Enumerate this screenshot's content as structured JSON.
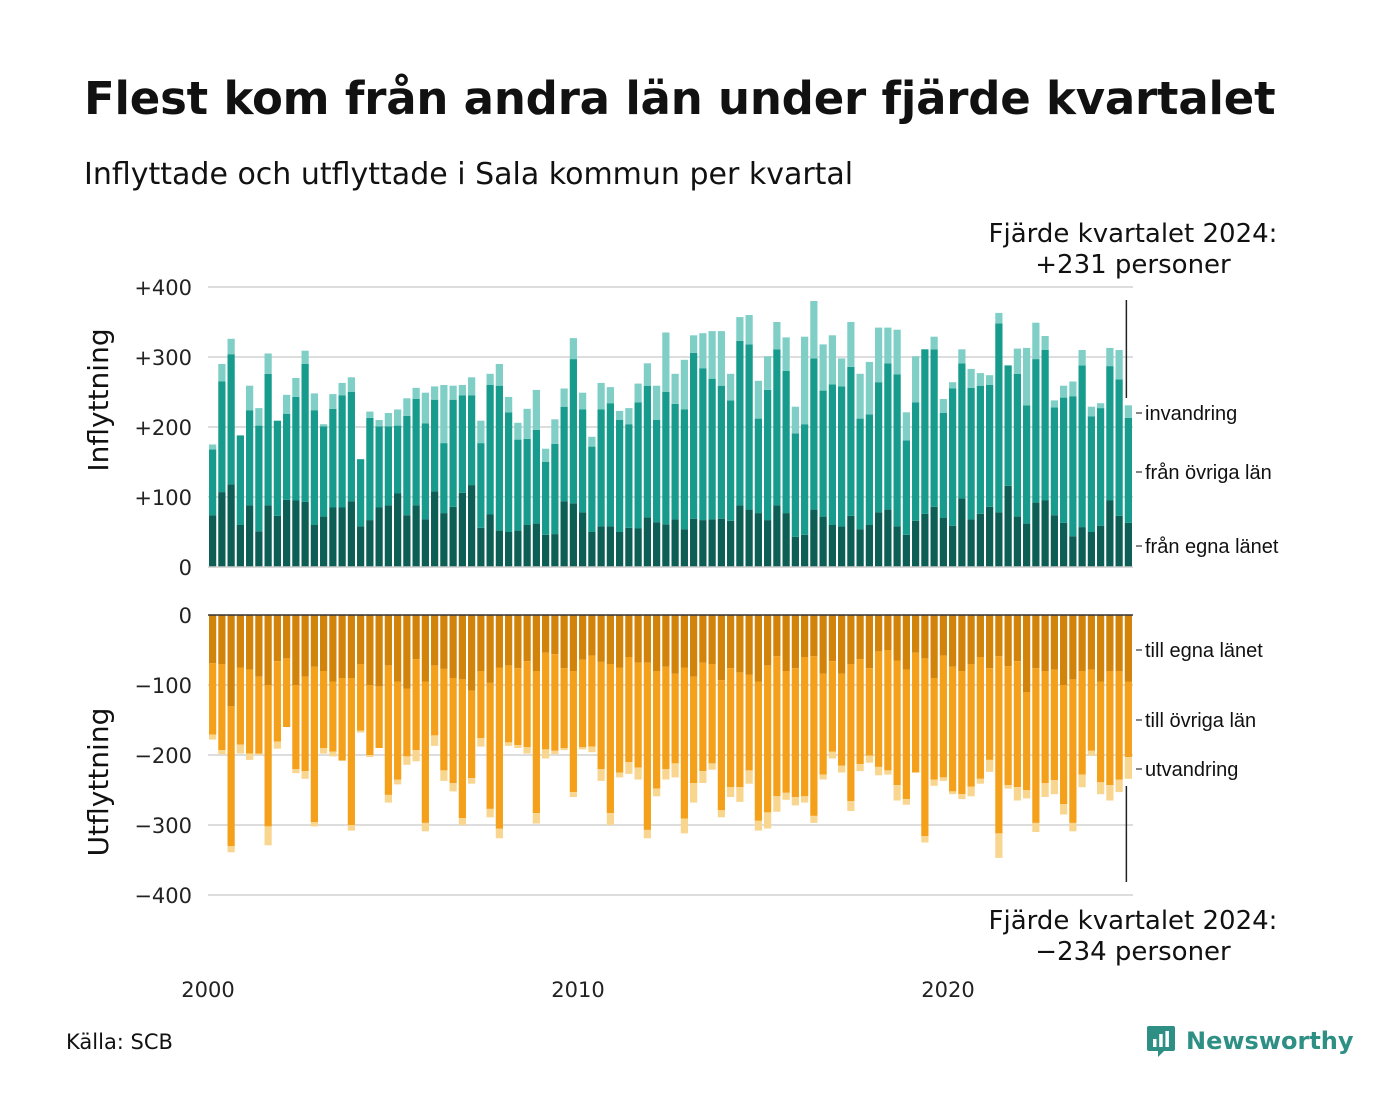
{
  "title": "Flest kom från andra län under fjärde kvartalet",
  "subtitle": "Inflyttade och utflyttade i Sala kommun per kvartal",
  "source": "Källa: SCB",
  "logo": {
    "name": "Newsworthy",
    "icon": "newsworthy-chart-bubble-icon",
    "color": "#2e8f84"
  },
  "chart_data": {
    "type": "bar",
    "stacked": true,
    "frequency": "quarterly",
    "start_period": "2000 Q1",
    "end_period": "2024 Q4",
    "x_ticks": [
      "2000",
      "2010",
      "2020"
    ],
    "top_panel": {
      "ylabel": "Inflyttning",
      "ylim": [
        0,
        400
      ],
      "y_ticks": [
        "0",
        "+100",
        "+200",
        "+300",
        "+400"
      ],
      "annotation": [
        "Fjärde kvartalet 2024:",
        "+231 personer"
      ],
      "series": [
        {
          "name": "från egna länet",
          "color": "#0d5e55",
          "values": [
            74,
            107,
            118,
            60,
            88,
            51,
            88,
            73,
            96,
            95,
            93,
            60,
            72,
            85,
            85,
            94,
            58,
            67,
            85,
            88,
            105,
            74,
            88,
            68,
            108,
            77,
            86,
            106,
            117,
            56,
            75,
            52,
            50,
            52,
            60,
            62,
            46,
            47,
            94,
            91,
            78,
            50,
            58,
            58,
            50,
            56,
            55,
            71,
            64,
            61,
            68,
            54,
            69,
            67,
            68,
            69,
            66,
            88,
            82,
            77,
            67,
            88,
            77,
            43,
            46,
            82,
            72,
            60,
            58,
            73,
            54,
            60,
            78,
            82,
            58,
            46,
            66,
            76,
            86,
            70,
            59,
            98,
            68,
            76,
            86,
            78,
            116,
            72,
            62,
            92,
            95,
            74,
            63,
            44,
            57,
            50,
            59,
            95,
            73,
            63
          ]
        },
        {
          "name": "från övriga län",
          "color": "#179b8d",
          "values": [
            94,
            158,
            186,
            128,
            136,
            151,
            188,
            136,
            123,
            148,
            197,
            164,
            129,
            141,
            160,
            156,
            96,
            146,
            116,
            113,
            97,
            142,
            152,
            137,
            131,
            100,
            153,
            139,
            128,
            121,
            185,
            207,
            171,
            130,
            123,
            134,
            104,
            129,
            135,
            206,
            147,
            122,
            167,
            176,
            160,
            148,
            180,
            188,
            146,
            189,
            165,
            171,
            237,
            217,
            201,
            190,
            172,
            235,
            236,
            135,
            186,
            223,
            203,
            148,
            158,
            216,
            180,
            201,
            200,
            213,
            158,
            158,
            186,
            209,
            217,
            135,
            169,
            235,
            225,
            150,
            196,
            193,
            188,
            183,
            174,
            270,
            172,
            204,
            169,
            205,
            215,
            154,
            179,
            200,
            231,
            165,
            168,
            192,
            195,
            150
          ]
        },
        {
          "name": "invandring",
          "color": "#7fcfc6",
          "values": [
            7,
            25,
            22,
            0,
            35,
            25,
            29,
            0,
            27,
            27,
            19,
            24,
            3,
            21,
            18,
            21,
            0,
            9,
            9,
            19,
            23,
            25,
            16,
            44,
            19,
            83,
            20,
            15,
            26,
            32,
            16,
            31,
            22,
            24,
            43,
            57,
            19,
            35,
            26,
            30,
            24,
            14,
            38,
            23,
            13,
            23,
            27,
            32,
            49,
            85,
            43,
            71,
            25,
            50,
            68,
            78,
            38,
            34,
            42,
            54,
            48,
            39,
            48,
            38,
            125,
            82,
            66,
            70,
            40,
            64,
            64,
            75,
            78,
            51,
            64,
            40,
            66,
            0,
            18,
            20,
            9,
            20,
            27,
            18,
            14,
            15,
            0,
            36,
            82,
            52,
            20,
            10,
            17,
            21,
            22,
            14,
            7,
            26,
            42,
            18
          ]
        }
      ]
    },
    "bottom_panel": {
      "ylabel": "Utflyttning",
      "ylim": [
        -400,
        0
      ],
      "y_ticks": [
        "0",
        "−100",
        "−200",
        "−300",
        "−400"
      ],
      "annotation": [
        "Fjärde kvartalet 2024:",
        "−234 personer"
      ],
      "series": [
        {
          "name": "till egna länet",
          "color": "#d2830a",
          "values": [
            69,
            70,
            130,
            75,
            78,
            88,
            100,
            66,
            62,
            100,
            88,
            74,
            80,
            95,
            90,
            90,
            70,
            100,
            102,
            72,
            95,
            105,
            63,
            95,
            72,
            77,
            90,
            92,
            108,
            80,
            97,
            75,
            72,
            76,
            66,
            80,
            54,
            56,
            76,
            80,
            64,
            58,
            67,
            70,
            75,
            60,
            68,
            68,
            80,
            74,
            84,
            75,
            88,
            68,
            70,
            93,
            76,
            82,
            85,
            95,
            72,
            59,
            80,
            76,
            60,
            59,
            84,
            66,
            84,
            70,
            63,
            76,
            52,
            50,
            65,
            78,
            54,
            62,
            90,
            58,
            74,
            80,
            70,
            60,
            76,
            59,
            73,
            66,
            110,
            76,
            80,
            78,
            100,
            92,
            80,
            78,
            95,
            80,
            80,
            95
          ]
        },
        {
          "name": "till övriga län",
          "color": "#f5a01b",
          "values": [
            102,
            123,
            200,
            110,
            120,
            110,
            202,
            115,
            98,
            120,
            135,
            222,
            110,
            100,
            118,
            210,
            95,
            100,
            88,
            185,
            140,
            97,
            130,
            202,
            100,
            145,
            150,
            198,
            125,
            96,
            180,
            230,
            110,
            110,
            123,
            203,
            138,
            138,
            114,
            173,
            125,
            130,
            153,
            213,
            150,
            150,
            150,
            239,
            168,
            146,
            128,
            216,
            152,
            155,
            142,
            186,
            170,
            164,
            137,
            199,
            210,
            200,
            174,
            184,
            199,
            228,
            144,
            129,
            131,
            196,
            150,
            125,
            165,
            172,
            178,
            185,
            171,
            254,
            145,
            174,
            178,
            176,
            175,
            174,
            131,
            253,
            170,
            180,
            140,
            221,
            160,
            158,
            170,
            205,
            148,
            116,
            144,
            163,
            155,
            108
          ]
        },
        {
          "name": "utvandring",
          "color": "#f9d68f",
          "values": [
            7,
            6,
            9,
            13,
            9,
            2,
            27,
            10,
            0,
            6,
            11,
            6,
            8,
            7,
            0,
            8,
            3,
            3,
            0,
            11,
            7,
            12,
            16,
            12,
            15,
            15,
            12,
            10,
            8,
            12,
            12,
            14,
            5,
            4,
            9,
            15,
            13,
            5,
            3,
            7,
            3,
            8,
            17,
            17,
            7,
            17,
            17,
            12,
            11,
            15,
            20,
            21,
            28,
            17,
            9,
            10,
            14,
            21,
            19,
            14,
            23,
            22,
            10,
            12,
            9,
            10,
            7,
            10,
            10,
            14,
            10,
            10,
            12,
            6,
            22,
            8,
            0,
            9,
            9,
            5,
            4,
            7,
            14,
            7,
            17,
            35,
            5,
            19,
            12,
            13,
            20,
            20,
            15,
            12,
            18,
            7,
            17,
            22,
            18,
            31
          ]
        }
      ]
    }
  }
}
